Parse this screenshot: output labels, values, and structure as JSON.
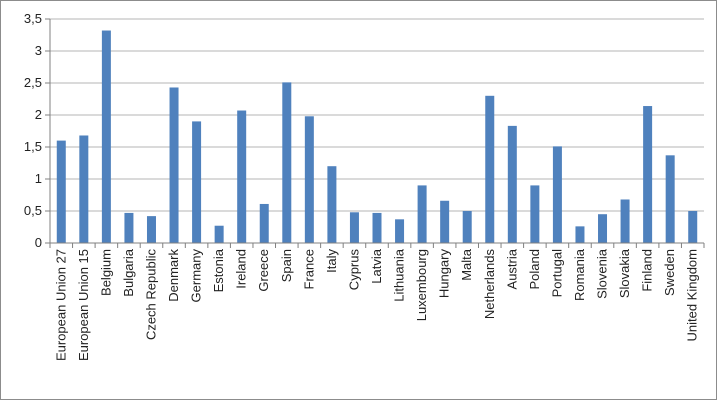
{
  "chart_data": {
    "type": "bar",
    "title": "",
    "xlabel": "",
    "ylabel": "",
    "ylim": [
      0,
      3.5
    ],
    "yticks": [
      "0",
      "0,5",
      "1",
      "1,5",
      "2",
      "2,5",
      "3",
      "3,5"
    ],
    "grid": true,
    "legend": "none",
    "bar_color": "#4f81bd",
    "grid_color": "#b4b4b4",
    "categories": [
      "European Union 27",
      "European Union 15",
      "Belgium",
      "Bulgaria",
      "Czech Republic",
      "Denmark",
      "Germany",
      "Estonia",
      "Ireland",
      "Greece",
      "Spain",
      "France",
      "Italy",
      "Cyprus",
      "Latvia",
      "Lithuania",
      "Luxembourg",
      "Hungary",
      "Malta",
      "Netherlands",
      "Austria",
      "Poland",
      "Portugal",
      "Romania",
      "Slovenia",
      "Slovakia",
      "Finland",
      "Sweden",
      "United Kingdom"
    ],
    "values": [
      1.6,
      1.68,
      3.32,
      0.47,
      0.42,
      2.43,
      1.9,
      0.27,
      2.07,
      0.61,
      2.51,
      1.98,
      1.2,
      0.48,
      0.47,
      0.37,
      0.9,
      0.66,
      0.5,
      2.3,
      1.83,
      0.9,
      1.51,
      0.26,
      0.45,
      0.68,
      2.14,
      1.37,
      0.5
    ]
  }
}
